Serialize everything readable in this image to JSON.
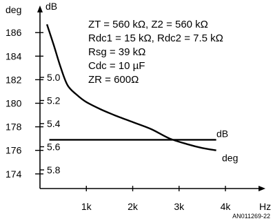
{
  "chart_data": {
    "type": "line",
    "left_axis_label": "deg",
    "right_axis_label": "dB",
    "x_axis_label": "Hz",
    "x_ticks": [
      "1k",
      "2k",
      "3k",
      "4k"
    ],
    "deg_ticks": [
      "186",
      "184",
      "182",
      "180",
      "178",
      "176",
      "174"
    ],
    "db_ticks": [
      "5.0",
      "5.2",
      "5.4",
      "5.6",
      "5.8"
    ],
    "xlim": [
      0,
      4500
    ],
    "deg_lim": [
      172.2,
      187.9
    ],
    "db_lim": [
      4.8,
      5.93
    ],
    "annotations": [
      "ZT = 560 kΩ, Z2 = 560 kΩ",
      "Rdc1 = 15 kΩ, Rdc2 = 7.5 kΩ",
      "Rsg = 39 kΩ",
      "Cdc = 10 µF",
      "ZR = 600Ω"
    ],
    "series": [
      {
        "name": "deg",
        "axis": "deg",
        "x": [
          150,
          300,
          450,
          600,
          800,
          1000,
          1300,
          1600,
          2000,
          2400,
          2800,
          3200,
          3500,
          3800
        ],
        "y": [
          186.7,
          184.9,
          183.0,
          181.5,
          180.7,
          180.1,
          179.5,
          179.0,
          178.4,
          177.8,
          177.0,
          176.5,
          176.2,
          176.0
        ]
      },
      {
        "name": "dB",
        "axis": "db",
        "x": [
          200,
          3800
        ],
        "y": [
          5.54,
          5.54
        ]
      }
    ],
    "grid": false,
    "figure_id": "AN011269-22"
  }
}
